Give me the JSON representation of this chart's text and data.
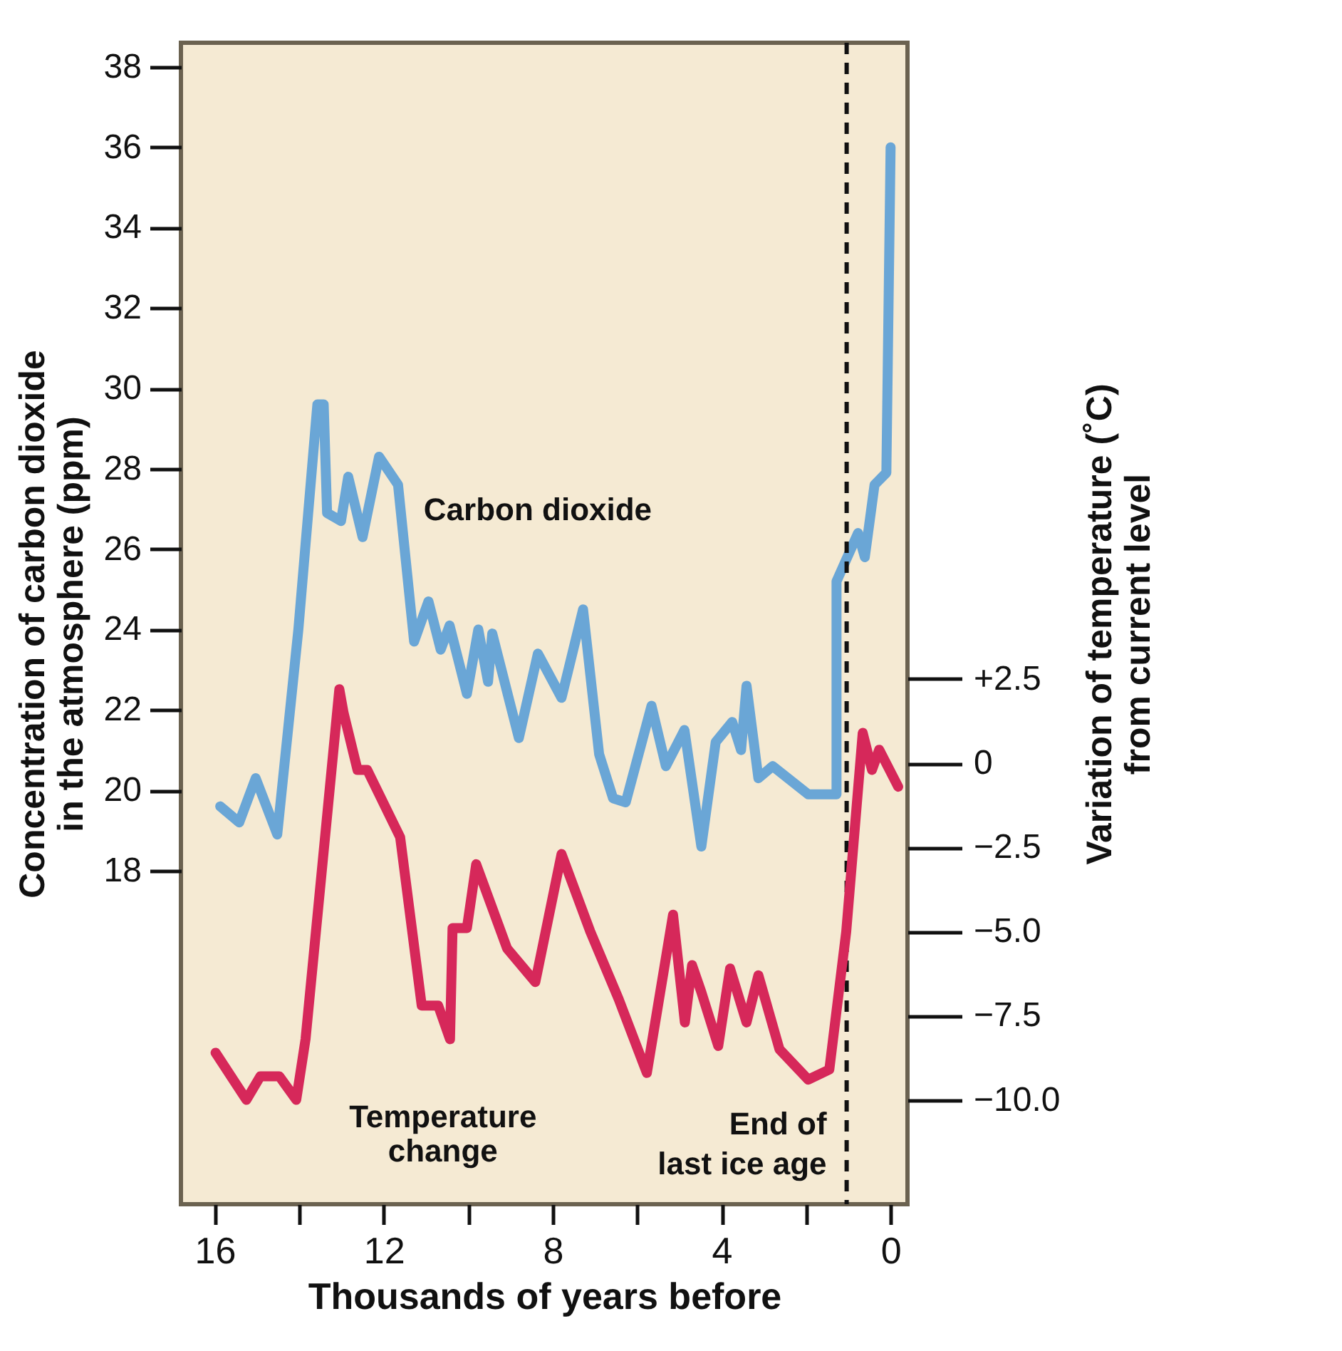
{
  "chart_data": {
    "type": "line",
    "xlabel": "Thousands of years before",
    "ylabel": "Concentration of carbon dioxide\nin the atmosphere (ppm)",
    "y2label": "Variation of temperature (˚C)\nfrom current level",
    "xlim": [
      16.8,
      -0.4
    ],
    "xticks": [
      16,
      {
        "value": 14,
        "label": null
      },
      12,
      {
        "value": 10,
        "label": null
      },
      8,
      {
        "value": 6,
        "label": null
      },
      4,
      {
        "value": 2,
        "label": null
      },
      0
    ],
    "ylim": [
      9.7,
      38.6
    ],
    "yticks": [
      18,
      20,
      22,
      24,
      26,
      28,
      30,
      32,
      34,
      36,
      38
    ],
    "y2lim": [
      -13.1,
      21.4
    ],
    "y2ticks": [
      {
        "value": 2.5,
        "label": "+2.5"
      },
      0,
      {
        "value": -2.5,
        "label": "−2.5"
      },
      {
        "value": -5,
        "label": "−5.0"
      },
      {
        "value": -7.5,
        "label": "−7.5"
      },
      {
        "value": -10,
        "label": "−10.0"
      }
    ],
    "grid": false,
    "marker": "none",
    "line_style": "solid",
    "series": [
      {
        "name": "Carbon dioxide",
        "color": "#6aa6d6",
        "x": [
          15.87,
          15.42,
          15.03,
          14.52,
          14.02,
          13.57,
          13.42,
          13.34,
          13.01,
          12.84,
          12.5,
          12.11,
          11.66,
          11.28,
          10.94,
          10.65,
          10.44,
          10.03,
          9.76,
          9.53,
          9.43,
          8.8,
          8.35,
          7.79,
          7.28,
          6.9,
          6.57,
          6.27,
          5.66,
          5.32,
          4.88,
          4.48,
          4.14,
          3.75,
          3.54,
          3.41,
          3.13,
          2.79,
          1.95,
          1.28,
          1.28,
          0.94,
          0.77,
          0.61,
          0.38,
          0.1,
          0.0
        ],
        "values": [
          19.6,
          19.2,
          20.3,
          18.9,
          24.0,
          29.6,
          29.6,
          26.9,
          26.7,
          27.8,
          26.3,
          28.3,
          27.6,
          23.7,
          24.7,
          23.5,
          24.1,
          22.4,
          24.0,
          22.7,
          23.9,
          21.3,
          23.4,
          22.3,
          24.5,
          20.9,
          19.8,
          19.7,
          22.1,
          20.6,
          21.5,
          18.6,
          21.2,
          21.7,
          21.0,
          22.6,
          20.3,
          20.6,
          19.9,
          19.9,
          25.2,
          26.0,
          26.4,
          25.8,
          27.6,
          27.9,
          36.0
        ]
      },
      {
        "name": "Temperature change",
        "color": "#d6285a",
        "axis": "y2",
        "x": [
          15.98,
          15.25,
          14.92,
          14.47,
          14.07,
          13.85,
          13.05,
          12.95,
          12.62,
          12.39,
          11.61,
          11.1,
          10.71,
          10.43,
          10.37,
          10.03,
          9.81,
          9.08,
          8.41,
          7.79,
          7.11,
          6.44,
          5.77,
          5.15,
          4.87,
          4.7,
          4.48,
          4.08,
          3.8,
          3.41,
          3.13,
          2.63,
          1.95,
          1.45,
          1.05,
          0.66,
          0.44,
          0.27,
          -0.18
        ],
        "values": [
          -8.6,
          -10.0,
          -9.3,
          -9.3,
          -10.0,
          -8.2,
          2.2,
          1.5,
          -0.2,
          -0.2,
          -2.2,
          -7.2,
          -7.2,
          -8.2,
          -4.9,
          -4.9,
          -3.0,
          -5.5,
          -6.5,
          -2.7,
          -5.0,
          -7.0,
          -9.2,
          -4.5,
          -7.7,
          -6.0,
          -6.8,
          -8.4,
          -6.1,
          -7.7,
          -6.3,
          -8.5,
          -9.4,
          -9.1,
          -5.0,
          0.9,
          -0.2,
          0.4,
          -0.7
        ]
      }
    ],
    "ref_lines": [
      {
        "axis": "x",
        "value": 1.04,
        "label": "End of\nlast ice age",
        "color": "#111111",
        "line_style": "dashed"
      }
    ]
  }
}
